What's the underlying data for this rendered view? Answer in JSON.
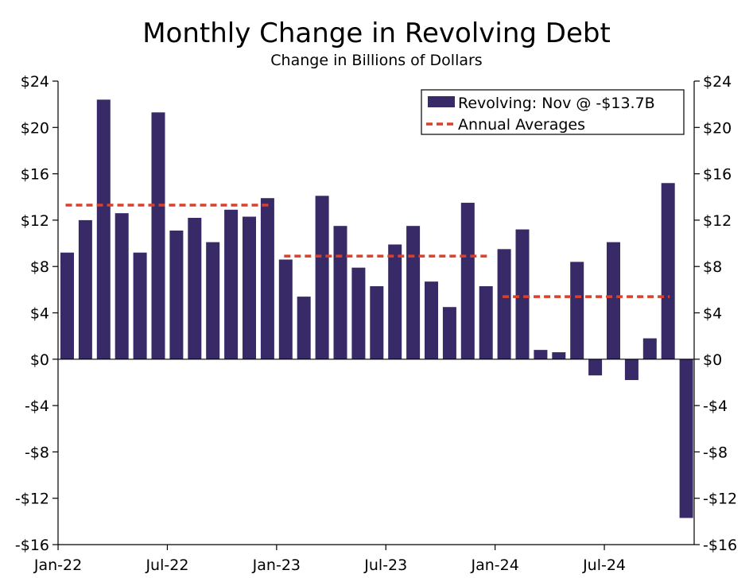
{
  "chart_data": {
    "type": "bar",
    "title": "Monthly Change in Revolving Debt",
    "subtitle": "Change in Billions of Dollars",
    "x_tick_labels": [
      "Jan-22",
      "Jul-22",
      "Jan-23",
      "Jul-23",
      "Jan-24",
      "Jul-24"
    ],
    "y_ticks": [
      24,
      20,
      16,
      12,
      8,
      4,
      0,
      -4,
      -8,
      -12,
      -16
    ],
    "y_tick_labels": [
      "$24",
      "$20",
      "$16",
      "$12",
      "$8",
      "$4",
      "$0",
      "-$4",
      "-$8",
      "-$12",
      "-$16"
    ],
    "ylim": [
      -16,
      24
    ],
    "grid": false,
    "legend_position": "top-right",
    "bar_color": "#372A66",
    "avg_color": "#D9412B",
    "series": [
      {
        "name": "Revolving: Nov @ -$13.7B",
        "kind": "bar",
        "categories": [
          "Jan-22",
          "Feb-22",
          "Mar-22",
          "Apr-22",
          "May-22",
          "Jun-22",
          "Jul-22",
          "Aug-22",
          "Sep-22",
          "Oct-22",
          "Nov-22",
          "Dec-22",
          "Jan-23",
          "Feb-23",
          "Mar-23",
          "Apr-23",
          "May-23",
          "Jun-23",
          "Jul-23",
          "Aug-23",
          "Sep-23",
          "Oct-23",
          "Nov-23",
          "Dec-23",
          "Jan-24",
          "Feb-24",
          "Mar-24",
          "Apr-24",
          "May-24",
          "Jun-24",
          "Jul-24",
          "Aug-24",
          "Sep-24",
          "Oct-24",
          "Nov-24"
        ],
        "values": [
          9.2,
          12.0,
          22.4,
          12.6,
          9.2,
          21.3,
          11.1,
          12.2,
          10.1,
          12.9,
          12.3,
          13.9,
          8.6,
          5.4,
          14.1,
          11.5,
          7.9,
          6.3,
          9.9,
          11.5,
          6.7,
          4.5,
          13.5,
          6.3,
          9.5,
          11.2,
          0.8,
          0.6,
          8.4,
          -1.4,
          10.1,
          -1.8,
          1.8,
          15.2,
          -13.7
        ]
      },
      {
        "name": "Annual Averages",
        "kind": "dashed-line",
        "segments": [
          {
            "from": "Jan-22",
            "to": "Dec-22",
            "value": 13.3
          },
          {
            "from": "Jan-23",
            "to": "Dec-23",
            "value": 8.9
          },
          {
            "from": "Jan-24",
            "to": "Oct-24",
            "value": 5.4
          }
        ]
      }
    ]
  }
}
